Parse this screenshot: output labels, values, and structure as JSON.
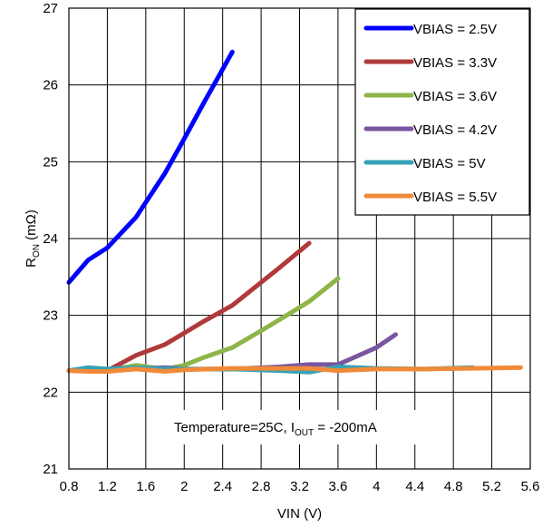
{
  "chart_data": {
    "type": "line",
    "xlabel": "VIN (V)",
    "ylabel": {
      "main": "R",
      "sub": "ON",
      "rest": " (mΩ)"
    },
    "xlim": [
      0.8,
      5.6
    ],
    "ylim": [
      21,
      27
    ],
    "xticks": [
      "0.8",
      "1.2",
      "1.6",
      "2",
      "2.4",
      "2.8",
      "3.2",
      "3.6",
      "4",
      "4.4",
      "4.8",
      "5.2",
      "5.6"
    ],
    "yticks": [
      "21",
      "22",
      "23",
      "24",
      "25",
      "26",
      "27"
    ],
    "grid": true,
    "legend_position": "top-right",
    "annotation": {
      "prefix": "Temperature=25C,  I",
      "sub": "OUT",
      "suffix": " = -200mA"
    },
    "series": [
      {
        "name": "VBIAS = 2.5V",
        "color": "#0000ff",
        "x": [
          0.8,
          1.0,
          1.2,
          1.5,
          1.8,
          2.0,
          2.2,
          2.5
        ],
        "y": [
          23.43,
          23.72,
          23.88,
          24.28,
          24.85,
          25.3,
          25.76,
          26.43
        ]
      },
      {
        "name": "VBIAS = 3.3V",
        "color": "#b03a3a",
        "x": [
          0.8,
          1.0,
          1.2,
          1.5,
          1.8,
          2.0,
          2.2,
          2.5,
          2.8,
          3.0,
          3.3
        ],
        "y": [
          22.28,
          22.3,
          22.28,
          22.48,
          22.62,
          22.77,
          22.92,
          23.13,
          23.43,
          23.63,
          23.94
        ]
      },
      {
        "name": "VBIAS = 3.6V",
        "color": "#8db548",
        "x": [
          0.8,
          1.0,
          1.2,
          1.5,
          1.8,
          2.0,
          2.2,
          2.5,
          2.8,
          3.0,
          3.3,
          3.6
        ],
        "y": [
          22.28,
          22.3,
          22.28,
          22.35,
          22.3,
          22.35,
          22.45,
          22.58,
          22.8,
          22.95,
          23.18,
          23.48
        ]
      },
      {
        "name": "VBIAS = 4.2V",
        "color": "#7a55a0",
        "x": [
          0.8,
          1.0,
          1.2,
          1.5,
          1.8,
          2.0,
          2.5,
          3.0,
          3.3,
          3.6,
          4.0,
          4.2
        ],
        "y": [
          22.28,
          22.3,
          22.3,
          22.3,
          22.32,
          22.3,
          22.3,
          22.33,
          22.36,
          22.36,
          22.58,
          22.75
        ]
      },
      {
        "name": "VBIAS = 5V",
        "color": "#35a3b5",
        "x": [
          0.8,
          1.0,
          1.2,
          1.5,
          1.8,
          2.0,
          2.5,
          3.0,
          3.3,
          3.6,
          4.0,
          4.5,
          5.0
        ],
        "y": [
          22.28,
          22.32,
          22.3,
          22.32,
          22.3,
          22.3,
          22.3,
          22.28,
          22.26,
          22.33,
          22.31,
          22.3,
          22.32
        ]
      },
      {
        "name": "VBIAS = 5.5V",
        "color": "#f08a38",
        "x": [
          0.8,
          1.0,
          1.2,
          1.5,
          1.8,
          2.0,
          2.5,
          3.0,
          3.3,
          3.6,
          4.0,
          4.5,
          5.0,
          5.5
        ],
        "y": [
          22.28,
          22.27,
          22.27,
          22.3,
          22.27,
          22.29,
          22.31,
          22.31,
          22.31,
          22.28,
          22.3,
          22.3,
          22.31,
          22.32
        ]
      }
    ]
  }
}
